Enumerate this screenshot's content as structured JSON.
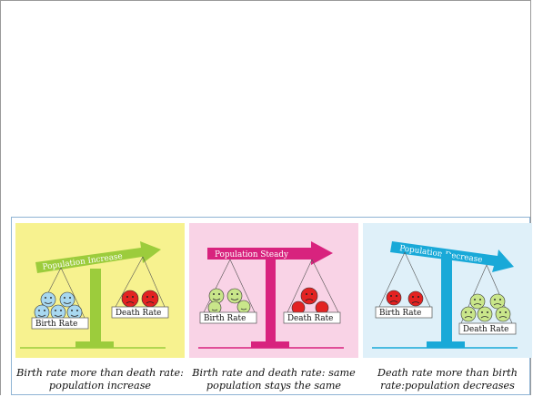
{
  "panels": [
    {
      "id": "increase",
      "arrow_label": "Population Increase",
      "left_pan_label": "Birth Rate",
      "right_pan_label": "Death Rate",
      "caption": "Birth rate more than death rate: population increase",
      "bg_color": "#f7f28f",
      "accent_color": "#9ccc3c"
    },
    {
      "id": "steady",
      "arrow_label": "Population Steady",
      "left_pan_label": "Birth Rate",
      "right_pan_label": "Death Rate",
      "caption": "Birth rate and death rate: same population stays the same",
      "bg_color": "#f9d3e6",
      "accent_color": "#d8237e"
    },
    {
      "id": "decrease",
      "arrow_label": "Population Decrease",
      "left_pan_label": "Birth Rate",
      "right_pan_label": "Death Rate",
      "caption": "Death rate more than birth rate:population decreases",
      "bg_color": "#dff0f9",
      "accent_color": "#19a9d8"
    }
  ]
}
